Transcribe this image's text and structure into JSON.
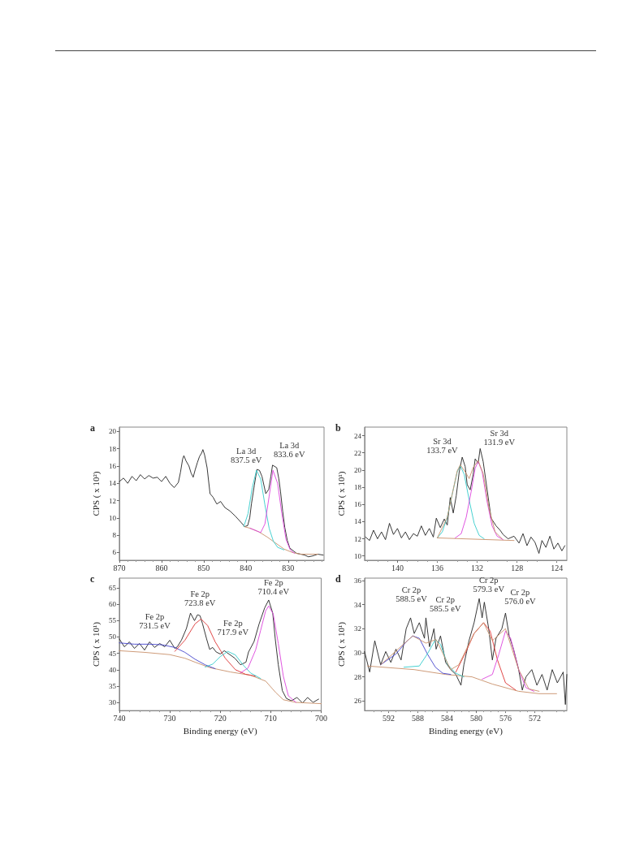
{
  "chart_data": [
    {
      "type": "line",
      "title": "a",
      "ylabel": "CPS ( x 10²)",
      "xlim": [
        870,
        821.5
      ],
      "xticks": [
        870,
        860,
        850,
        840,
        830
      ],
      "ylim": [
        5.1,
        20.5
      ],
      "yticks": [
        6,
        8,
        10,
        12,
        14,
        16,
        18,
        20
      ],
      "annotations": [
        "La 3d\n837.5 eV",
        "La 3d\n833.6 eV"
      ],
      "series": [
        {
          "color": "#222222",
          "x": [
            870,
            869,
            868,
            867,
            866,
            865,
            864,
            863,
            862,
            861,
            860,
            859,
            858,
            857,
            856,
            855.5,
            855,
            854.7,
            854.2,
            853.5,
            853,
            852.5,
            852,
            851.5,
            851,
            850.5,
            850.2,
            849.8,
            849.2,
            848.5,
            847.8,
            846.9,
            846,
            845,
            843.8,
            842.5,
            841.2,
            840.3,
            839.6,
            839.1,
            838.7,
            838,
            837.4,
            836.8,
            836.2,
            835.3,
            834.6,
            834.1,
            833.7,
            832.7,
            832.2,
            831.8,
            831.3,
            830.8,
            830.2,
            829.6,
            828.8,
            828,
            827,
            826.1,
            825.2,
            824.2,
            823,
            821.7
          ],
          "values": [
            14.2,
            14.6,
            14.0,
            14.8,
            14.3,
            15.0,
            14.5,
            14.9,
            14.6,
            14.7,
            14.2,
            14.8,
            14.0,
            13.5,
            14.1,
            15.3,
            16.8,
            17.2,
            16.6,
            16.0,
            15.2,
            14.7,
            15.6,
            16.4,
            17.1,
            17.5,
            17.9,
            17.3,
            15.8,
            12.8,
            12.4,
            11.6,
            11.9,
            11.2,
            10.8,
            10.2,
            9.5,
            9.0,
            9.1,
            10.0,
            11.6,
            13.8,
            15.6,
            15.5,
            14.8,
            12.8,
            13.3,
            14.8,
            16.1,
            15.8,
            14.5,
            13.0,
            10.8,
            8.9,
            7.4,
            6.5,
            6.2,
            5.9,
            5.8,
            5.7,
            5.5,
            5.6,
            5.8,
            5.7
          ]
        },
        {
          "color": "#c8906a",
          "x": [
            840.5,
            839,
            837,
            835,
            833,
            831,
            829,
            827,
            825,
            823
          ],
          "values": [
            9.0,
            8.8,
            8.4,
            7.8,
            7.1,
            6.4,
            6.0,
            5.8,
            5.8,
            5.8
          ]
        },
        {
          "color": "#33cccc",
          "x": [
            840.5,
            839.5,
            838.5,
            837.5,
            836.5,
            835.5,
            834.5,
            833.5,
            832.5,
            831
          ],
          "values": [
            9.0,
            10.5,
            13.5,
            15.5,
            14.5,
            11.5,
            8.8,
            7.3,
            6.6,
            6.3
          ]
        },
        {
          "color": "#dd44dd",
          "x": [
            839,
            837.5,
            836.5,
            835.5,
            834.5,
            833.6,
            832.5,
            831.5,
            830.5,
            829.5,
            828.5
          ],
          "values": [
            8.8,
            8.5,
            8.3,
            9.3,
            12.5,
            15.5,
            14.0,
            10.5,
            7.5,
            6.3,
            5.9
          ]
        }
      ]
    },
    {
      "type": "line",
      "title": "b",
      "ylabel": "CPS ( x 10¹)",
      "xlim": [
        143.3,
        123
      ],
      "xticks": [
        140,
        136,
        132,
        128,
        124
      ],
      "ylim": [
        9.5,
        25
      ],
      "yticks": [
        10,
        12,
        14,
        16,
        18,
        20,
        22,
        24
      ],
      "annotations": [
        "Sr 3d\n133.7 eV",
        "Sr 3d\n131.9 eV"
      ],
      "series": [
        {
          "color": "#222222",
          "x": [
            143.2,
            142.8,
            142.4,
            142,
            141.6,
            141.2,
            140.8,
            140.4,
            140,
            139.6,
            139.2,
            138.8,
            138.4,
            138,
            137.6,
            137.2,
            136.8,
            136.4,
            136.1,
            135.7,
            135.3,
            135,
            134.7,
            134.4,
            134.1,
            133.8,
            133.5,
            133.2,
            133,
            132.7,
            132.4,
            132.2,
            131.9,
            131.7,
            131.4,
            131.0,
            130.6,
            130.1,
            129.7,
            129.4,
            128.9,
            128.3,
            127.8,
            127.4,
            127,
            126.6,
            126.2,
            125.8,
            125.5,
            125.1,
            124.7,
            124.3,
            123.9,
            123.5,
            123.2
          ],
          "values": [
            12.2,
            11.8,
            13.0,
            12.0,
            12.8,
            11.9,
            13.8,
            12.5,
            13.2,
            12.1,
            12.8,
            11.9,
            12.6,
            12.3,
            13.5,
            12.4,
            13.2,
            12.2,
            14.4,
            13.3,
            14.3,
            13.6,
            16.8,
            15.0,
            17.0,
            19.8,
            21.5,
            20.4,
            18.3,
            17.7,
            19.5,
            21.3,
            20.8,
            22.5,
            21.0,
            17.7,
            14.4,
            13.5,
            13.0,
            12.5,
            12.0,
            12.3,
            11.5,
            12.6,
            11.2,
            12.2,
            11.6,
            10.3,
            11.8,
            11.0,
            12.3,
            10.8,
            11.5,
            10.6,
            11.2
          ]
        },
        {
          "color": "#c8906a",
          "x": [
            136,
            128.3
          ],
          "values": [
            12.1,
            11.8
          ]
        },
        {
          "color": "#33cccc",
          "x": [
            136,
            135.5,
            135,
            134.5,
            134,
            133.7,
            133.3,
            132.8,
            132.3,
            131.8,
            131.3
          ],
          "values": [
            12.1,
            12.8,
            14.5,
            17.2,
            19.8,
            20.5,
            19.5,
            16.5,
            13.8,
            12.4,
            12.0
          ]
        },
        {
          "color": "#dd44dd",
          "x": [
            134.2,
            133.6,
            133.1,
            132.6,
            132.2,
            131.9,
            131.5,
            131,
            130.5,
            130,
            129.4
          ],
          "values": [
            12.1,
            12.6,
            14.5,
            17.5,
            20.2,
            21.0,
            19.8,
            16.3,
            13.5,
            12.3,
            11.9
          ]
        },
        {
          "color": "#c8906a",
          "x": [
            136,
            135,
            134.5,
            134,
            133.7,
            133.2,
            132.8,
            132.4,
            131.9,
            131.4,
            130.8,
            130.2,
            129.5
          ],
          "values": [
            12.1,
            14.5,
            17.2,
            19.9,
            20.6,
            19.8,
            19.0,
            20.3,
            21.1,
            19.6,
            15.5,
            12.8,
            12.0
          ]
        }
      ]
    },
    {
      "type": "line",
      "title": "c",
      "xlabel": "Binding energy (eV)",
      "ylabel": "CPS ( x 10¹)",
      "xlim": [
        740,
        700
      ],
      "xticks": [
        740,
        730,
        720,
        710,
        700
      ],
      "ylim": [
        27.5,
        68
      ],
      "yticks": [
        30,
        35,
        40,
        45,
        50,
        55,
        60,
        65
      ],
      "annotations": [
        "Fe 2p\n731.5 eV",
        "Fe 2p\n723.8 eV",
        "Fe 2p\n717.9 eV",
        "Fe 2p\n710.4 eV"
      ],
      "series": [
        {
          "color": "#222222",
          "x": [
            740,
            739,
            738,
            737,
            736,
            735,
            734,
            733,
            732,
            731,
            730,
            729,
            728.5,
            727.7,
            726.7,
            725.9,
            725.1,
            724.5,
            724,
            723.5,
            722.7,
            722.1,
            721.5,
            720.8,
            720,
            719.2,
            718.1,
            717.1,
            716,
            714.9,
            714.4,
            713.3,
            712.3,
            711.2,
            710.4,
            709.6,
            709.1,
            708.5,
            707.7,
            706.9,
            705.9,
            704.8,
            703.7,
            702.7,
            701.6,
            700.5
          ],
          "values": [
            49.4,
            47,
            48.5,
            46.5,
            48,
            46,
            48.5,
            46.8,
            48,
            47,
            49,
            46.5,
            47,
            49,
            52.6,
            57.3,
            55,
            56.8,
            56.5,
            54,
            49.4,
            46.2,
            46.8,
            45.4,
            44.8,
            45.8,
            44.6,
            43.5,
            41.5,
            42.3,
            45.4,
            48.6,
            54,
            58.9,
            61.3,
            57.3,
            49.4,
            41.5,
            33.6,
            31.2,
            30.5,
            31.5,
            29.8,
            31.5,
            30,
            31
          ]
        },
        {
          "color": "#c8906a",
          "x": [
            740,
            735,
            730,
            727,
            725,
            722,
            718,
            714,
            711,
            709,
            707.5,
            705,
            700
          ],
          "values": [
            45.8,
            45.3,
            44.6,
            43.5,
            42.3,
            40.6,
            39.3,
            38.3,
            36.5,
            33,
            30.8,
            30.0,
            29.6
          ]
        },
        {
          "color": "#4444cc",
          "x": [
            740,
            737,
            734,
            731.5,
            729,
            727,
            725,
            723,
            721
          ],
          "values": [
            48.2,
            47.8,
            47.8,
            47.6,
            46.8,
            45.3,
            43.2,
            41.5,
            40.3
          ]
        },
        {
          "color": "#dd3333",
          "x": [
            729,
            727,
            725,
            723.8,
            722.5,
            721,
            719,
            717,
            715,
            713
          ],
          "values": [
            45.6,
            49,
            54,
            55.5,
            53.5,
            48.5,
            43.5,
            40,
            38.6,
            38
          ]
        },
        {
          "color": "#33cccc",
          "x": [
            723,
            721.5,
            720,
            718.5,
            717,
            715.5,
            714,
            712
          ],
          "values": [
            40.8,
            41.7,
            44,
            45.6,
            44.5,
            41.5,
            39,
            37.3
          ]
        },
        {
          "color": "#dd44dd",
          "x": [
            716,
            714.5,
            713,
            712,
            711,
            710.4,
            709.5,
            708.5,
            707.5,
            706.5,
            705
          ],
          "values": [
            39,
            40.5,
            46,
            52,
            58,
            59.5,
            57,
            48,
            38,
            32,
            30
          ]
        }
      ]
    },
    {
      "type": "line",
      "title": "d",
      "xlabel": "Binding energy (eV)",
      "ylabel": "CPS ( x 10¹)",
      "xlim": [
        595.3,
        567.6
      ],
      "xticks": [
        592,
        588,
        584,
        580,
        576,
        572
      ],
      "ylim": [
        25.2,
        36.2
      ],
      "yticks": [
        26,
        28,
        30,
        32,
        34,
        36
      ],
      "annotations": [
        "Cr 2p\n588.5 eV",
        "Cr 2p\n585.5 eV",
        "Cr 2p\n579.3 eV",
        "Cr 2p\n576.0 eV"
      ],
      "series": [
        {
          "color": "#222222",
          "x": [
            595.3,
            594.6,
            593.9,
            593.1,
            592.4,
            591.7,
            591.0,
            590.3,
            589.6,
            589.0,
            588.5,
            587.8,
            587.1,
            586.9,
            586.4,
            585.8,
            585.5,
            584.9,
            584.2,
            583.5,
            582.8,
            582.1,
            581.7,
            581.0,
            580.3,
            579.6,
            579.2,
            578.9,
            578.3,
            577.8,
            577.3,
            576.5,
            576.0,
            575.5,
            574.9,
            574.2,
            573.7,
            573.2,
            572.4,
            571.7,
            571.0,
            570.3,
            569.6,
            568.9,
            568.1,
            567.8,
            567.6
          ],
          "values": [
            30.1,
            28.4,
            31,
            29,
            30.1,
            29.2,
            30.3,
            29.4,
            32,
            32.9,
            31.6,
            32.5,
            31.2,
            32.9,
            30.5,
            32,
            30.3,
            31.4,
            29.2,
            28.6,
            28.2,
            27.3,
            29,
            31,
            32.5,
            34.5,
            32.9,
            34.2,
            32,
            29.4,
            31.2,
            32,
            33.3,
            31.4,
            30.3,
            28.6,
            26.9,
            28,
            28.6,
            27.3,
            28.2,
            26.9,
            28.6,
            27.5,
            28.4,
            25.7,
            28.2
          ]
        },
        {
          "color": "#c8906a",
          "x": [
            594.9,
            588.5,
            584.2,
            580.6,
            577.8,
            574.2,
            571.4,
            569
          ],
          "values": [
            28.9,
            28.6,
            28.2,
            28,
            27.4,
            26.8,
            26.6,
            26.6
          ]
        },
        {
          "color": "#4444cc",
          "x": [
            593.1,
            591.0,
            589.6,
            588.7,
            587.8,
            586.7,
            585.6,
            584.6,
            583.5
          ],
          "values": [
            29,
            29.9,
            30.9,
            31.4,
            31.2,
            29.9,
            28.8,
            28.3,
            28.2
          ]
        },
        {
          "color": "#33cccc",
          "x": [
            589.9,
            587.8,
            586.7,
            585.6,
            584.9,
            583.9,
            582.8,
            581.7
          ],
          "values": [
            28.8,
            28.9,
            29.9,
            31.1,
            30.7,
            29,
            28.3,
            28.0
          ]
        },
        {
          "color": "#dd3333",
          "x": [
            582.8,
            581.4,
            580.3,
            579.0,
            578.1,
            577.1,
            576.0,
            574.6
          ],
          "values": [
            28.4,
            30.1,
            31.6,
            32.5,
            31.8,
            29.4,
            27.5,
            26.9
          ]
        },
        {
          "color": "#dd44dd",
          "x": [
            579.2,
            577.8,
            576.9,
            576.0,
            575.3,
            574.2,
            573.2,
            572.1
          ],
          "values": [
            27.8,
            28.2,
            29.9,
            31.8,
            31.2,
            28.6,
            27.1,
            26.8
          ]
        },
        {
          "color": "#c8906a",
          "x": [
            593.1,
            588.7,
            586.9,
            585.5,
            583.5,
            582.4,
            580.3,
            579.0,
            577.8,
            576.0,
            574.2,
            572.8,
            571.4
          ],
          "values": [
            29,
            31.4,
            30.8,
            31.1,
            28.6,
            29,
            31.6,
            32.5,
            31,
            32,
            28.6,
            27,
            26.8
          ]
        }
      ]
    }
  ]
}
